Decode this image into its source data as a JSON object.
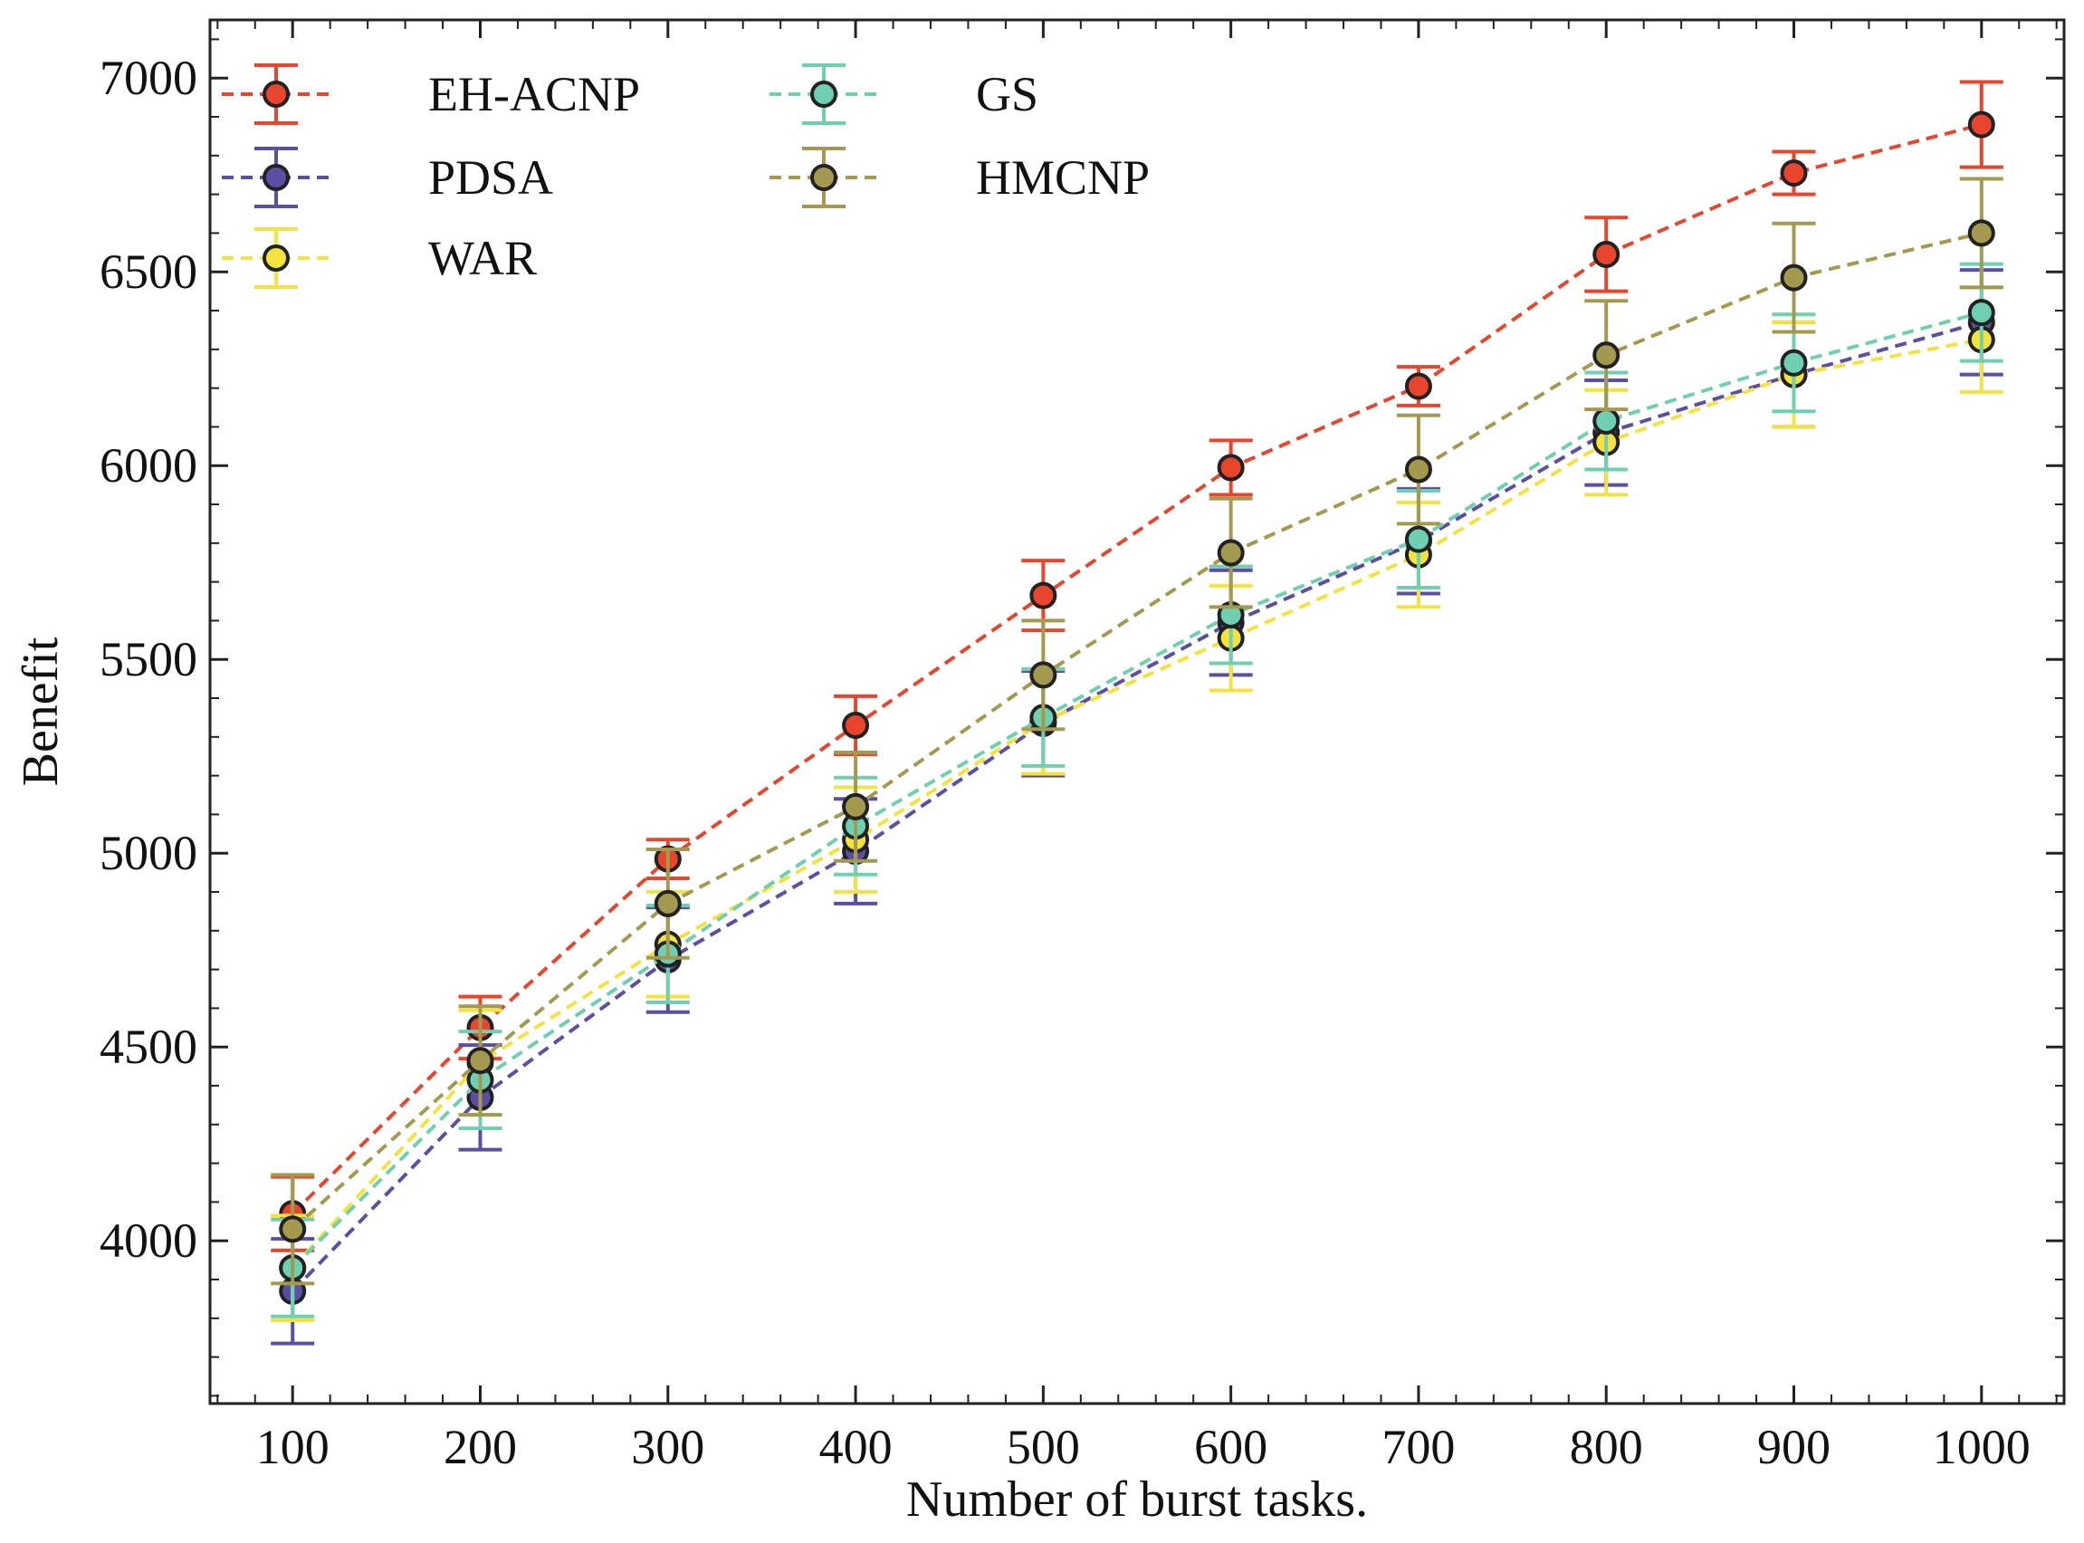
{
  "chart_data": {
    "type": "line",
    "title": "",
    "xlabel": "Number of burst tasks.",
    "ylabel": "Benefit",
    "x": [
      100,
      200,
      300,
      400,
      500,
      600,
      700,
      800,
      900,
      1000
    ],
    "xticks": [
      "100",
      "200",
      "300",
      "400",
      "500",
      "600",
      "700",
      "800",
      "900",
      "1000"
    ],
    "xlim": [
      56,
      1044
    ],
    "ylim": [
      3580,
      7150
    ],
    "yticks": [
      4000,
      4500,
      5000,
      5500,
      6000,
      6500,
      7000
    ],
    "ytick_labels": [
      "4000",
      "4500",
      "5000",
      "5500",
      "6000",
      "6500",
      "7000"
    ],
    "grid": false,
    "legend_position": "top-left",
    "series": [
      {
        "name": "EH-ACNP",
        "color": "#e8452c",
        "values": [
          4070,
          4550,
          4985,
          5330,
          5665,
          5995,
          6205,
          6545,
          6755,
          6880
        ],
        "errors": [
          95,
          80,
          50,
          75,
          90,
          70,
          50,
          95,
          55,
          110
        ]
      },
      {
        "name": "PDSA",
        "color": "#5b4ea3",
        "values": [
          3870,
          4370,
          4725,
          5005,
          5335,
          5595,
          5805,
          6085,
          6235,
          6370
        ],
        "errors": [
          135,
          135,
          135,
          135,
          135,
          135,
          135,
          135,
          135,
          135
        ]
      },
      {
        "name": "WAR",
        "color": "#f4e33c",
        "values": [
          3930,
          4460,
          4765,
          5035,
          5340,
          5555,
          5770,
          6060,
          6235,
          6325
        ],
        "errors": [
          135,
          135,
          135,
          135,
          135,
          135,
          135,
          135,
          135,
          135
        ]
      },
      {
        "name": "GS",
        "color": "#6fcfb2",
        "values": [
          3930,
          4415,
          4740,
          5070,
          5350,
          5615,
          5810,
          6115,
          6265,
          6395
        ],
        "errors": [
          125,
          125,
          125,
          125,
          125,
          125,
          125,
          125,
          125,
          125
        ]
      },
      {
        "name": "HMCNP",
        "color": "#a39a4f",
        "values": [
          4030,
          4465,
          4870,
          5120,
          5460,
          5775,
          5990,
          6285,
          6485,
          6600
        ],
        "errors": [
          140,
          140,
          140,
          140,
          140,
          140,
          140,
          140,
          140,
          140
        ]
      }
    ]
  }
}
